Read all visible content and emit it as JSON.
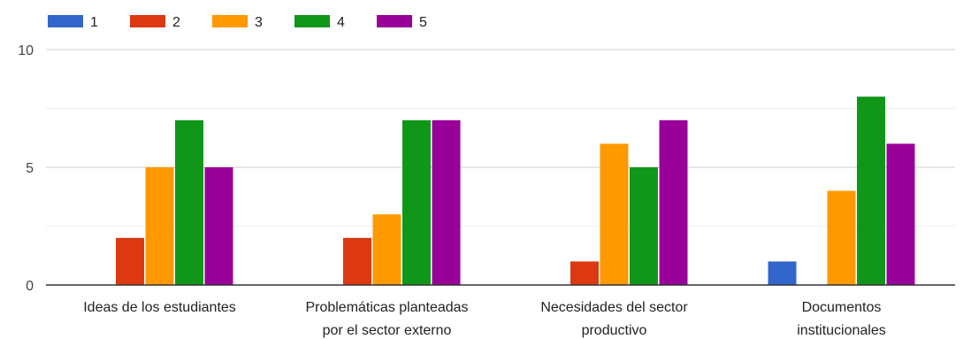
{
  "chart_data": {
    "type": "bar",
    "categories": [
      [
        "Ideas de los estudiantes"
      ],
      [
        "Problemáticas planteadas",
        "por el sector externo"
      ],
      [
        "Necesidades del sector",
        "productivo"
      ],
      [
        "Documentos",
        "institucionales"
      ]
    ],
    "series": [
      {
        "name": "1",
        "color": "#3366cc",
        "values": [
          0,
          0,
          0,
          1
        ]
      },
      {
        "name": "2",
        "color": "#dc3912",
        "values": [
          2,
          2,
          1,
          0
        ]
      },
      {
        "name": "3",
        "color": "#ff9900",
        "values": [
          5,
          3,
          6,
          4
        ]
      },
      {
        "name": "4",
        "color": "#109618",
        "values": [
          7,
          7,
          5,
          8
        ]
      },
      {
        "name": "5",
        "color": "#990099",
        "values": [
          5,
          7,
          7,
          6
        ]
      }
    ],
    "y_ticks": [
      0,
      5,
      10
    ],
    "ylim": [
      0,
      10
    ],
    "grid": true,
    "legend_position": "top-left"
  }
}
